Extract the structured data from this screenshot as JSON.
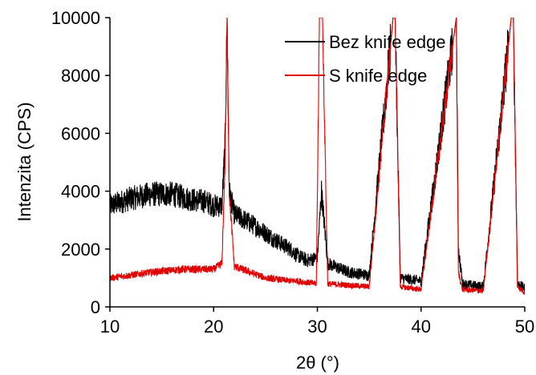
{
  "chart_data": {
    "type": "line",
    "xlabel": "2θ (°)",
    "ylabel": "Intenzita (CPS)",
    "xlim": [
      10,
      50
    ],
    "ylim": [
      0,
      10000
    ],
    "x_ticks": [
      "10",
      "20",
      "30",
      "40",
      "50"
    ],
    "y_ticks": [
      "0",
      "2000",
      "4000",
      "6000",
      "8000",
      "10000"
    ],
    "grid": false,
    "legend_position": "top-right",
    "series": [
      {
        "name": "Bez knife edge",
        "color": "#000000",
        "x": [
          10,
          12,
          14,
          16,
          18,
          19.2,
          20,
          20.8,
          21.1,
          21.3,
          21.5,
          22,
          24,
          26,
          27.4,
          28,
          29,
          30,
          30.4,
          31,
          33,
          35,
          37.3,
          37.5,
          38,
          40,
          43.4,
          43.6,
          44,
          46,
          48.7,
          48.9,
          49.3,
          50
        ],
        "y": [
          3500,
          3750,
          3900,
          3900,
          3700,
          3650,
          3500,
          3500,
          5600,
          10000,
          4000,
          3200,
          2800,
          2300,
          2000,
          1800,
          1600,
          1700,
          4000,
          1500,
          1200,
          1100,
          10000,
          10000,
          1000,
          900,
          10000,
          2000,
          800,
          700,
          10000,
          10000,
          800,
          650
        ]
      },
      {
        "name": "S knife edge",
        "color": "#e00000",
        "x": [
          10,
          14,
          17,
          19.2,
          20,
          20.8,
          21.1,
          21.3,
          21.5,
          22,
          25,
          27.4,
          28,
          29.9,
          30.2,
          30.5,
          31,
          35,
          37.3,
          37.5,
          38,
          40,
          43.4,
          43.6,
          44,
          46,
          48.7,
          48.9,
          49.3,
          50
        ],
        "y": [
          1000,
          1200,
          1300,
          1300,
          1300,
          1500,
          5000,
          10000,
          4000,
          1400,
          1000,
          900,
          900,
          800,
          10000,
          10000,
          800,
          700,
          10000,
          10000,
          700,
          600,
          10000,
          1200,
          600,
          550,
          10000,
          10000,
          700,
          500
        ]
      }
    ]
  }
}
